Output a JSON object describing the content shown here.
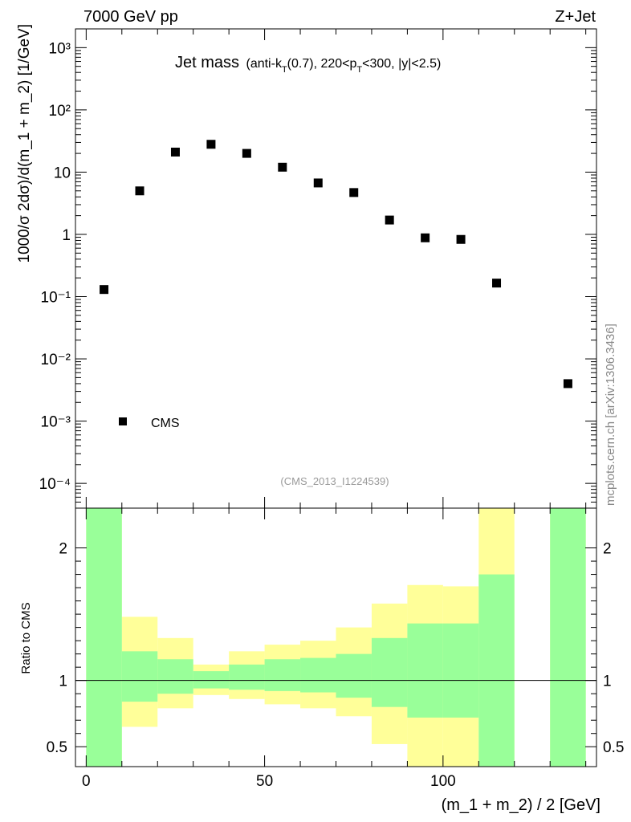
{
  "header": {
    "left": "7000 GeV pp",
    "right": "Z+Jet"
  },
  "title": {
    "main": "Jet mass",
    "detail_a": "(anti-k",
    "detail_a_sub": "T",
    "detail_b": "(0.7), 220<p",
    "detail_b_sub": "T",
    "detail_c": "<300, |y|<2.5)"
  },
  "watermark": "mcplots.cern.ch [arXiv:1306.3436]",
  "analysis_id": "(CMS_2013_I1224539)",
  "chart_data": [
    {
      "type": "scatter",
      "title": "Jet mass (anti-kT(0.7), 220<pT<300, |y|<2.5)",
      "ylabel": "1000/σ 2dσ)/d(m_1 + m_2) [1/GeV]",
      "yscale": "log",
      "ylim": [
        4e-05,
        2000
      ],
      "xlim": [
        -3,
        143
      ],
      "y_tick_labels": [
        "10⁻⁴",
        "10⁻³",
        "10⁻²",
        "10⁻¹",
        "1",
        "10",
        "10²",
        "10³"
      ],
      "legend": {
        "label": "CMS",
        "placement": "lower-left"
      },
      "series": [
        {
          "name": "CMS",
          "x": [
            5,
            15,
            25,
            35,
            45,
            55,
            65,
            75,
            85,
            95,
            105,
            115,
            135
          ],
          "y": [
            0.13,
            5.0,
            21,
            28,
            20,
            12,
            6.7,
            4.7,
            1.7,
            0.88,
            0.83,
            0.165,
            0.004
          ]
        }
      ]
    },
    {
      "type": "area",
      "ylabel": "Ratio to CMS",
      "xlabel": "(m_1 + m_2) / 2 [GeV]",
      "ylim": [
        0.35,
        2.3
      ],
      "xlim": [
        -3,
        143
      ],
      "x_ticks": [
        0,
        50,
        100
      ],
      "x_tick_labels": [
        "0",
        "50",
        "100"
      ],
      "y_ticks": [
        0.5,
        1,
        2
      ],
      "y_tick_labels": [
        "0.5",
        "1",
        "2"
      ],
      "reference_line": 1,
      "bin_edges": [
        0,
        10,
        20,
        30,
        40,
        50,
        60,
        70,
        80,
        90,
        100,
        110,
        120,
        130,
        140
      ],
      "total_band": {
        "name": "total uncertainty",
        "lower": [
          0.35,
          0.65,
          0.79,
          0.89,
          0.86,
          0.82,
          0.79,
          0.73,
          0.52,
          0.35,
          0.35,
          0.35,
          null,
          0.35
        ],
        "upper": [
          2.3,
          1.48,
          1.32,
          1.12,
          1.22,
          1.27,
          1.3,
          1.4,
          1.58,
          1.72,
          1.71,
          2.3,
          null,
          2.3
        ]
      },
      "stat_band": {
        "name": "statistical uncertainty",
        "lower": [
          0.35,
          0.84,
          0.9,
          0.94,
          0.93,
          0.92,
          0.91,
          0.87,
          0.8,
          0.72,
          0.72,
          0.35,
          null,
          0.35
        ],
        "upper": [
          2.3,
          1.22,
          1.16,
          1.07,
          1.12,
          1.16,
          1.17,
          1.2,
          1.32,
          1.43,
          1.43,
          1.8,
          null,
          2.3
        ]
      },
      "colors": {
        "total": "#ffff99",
        "stat": "#99ff99"
      }
    }
  ]
}
